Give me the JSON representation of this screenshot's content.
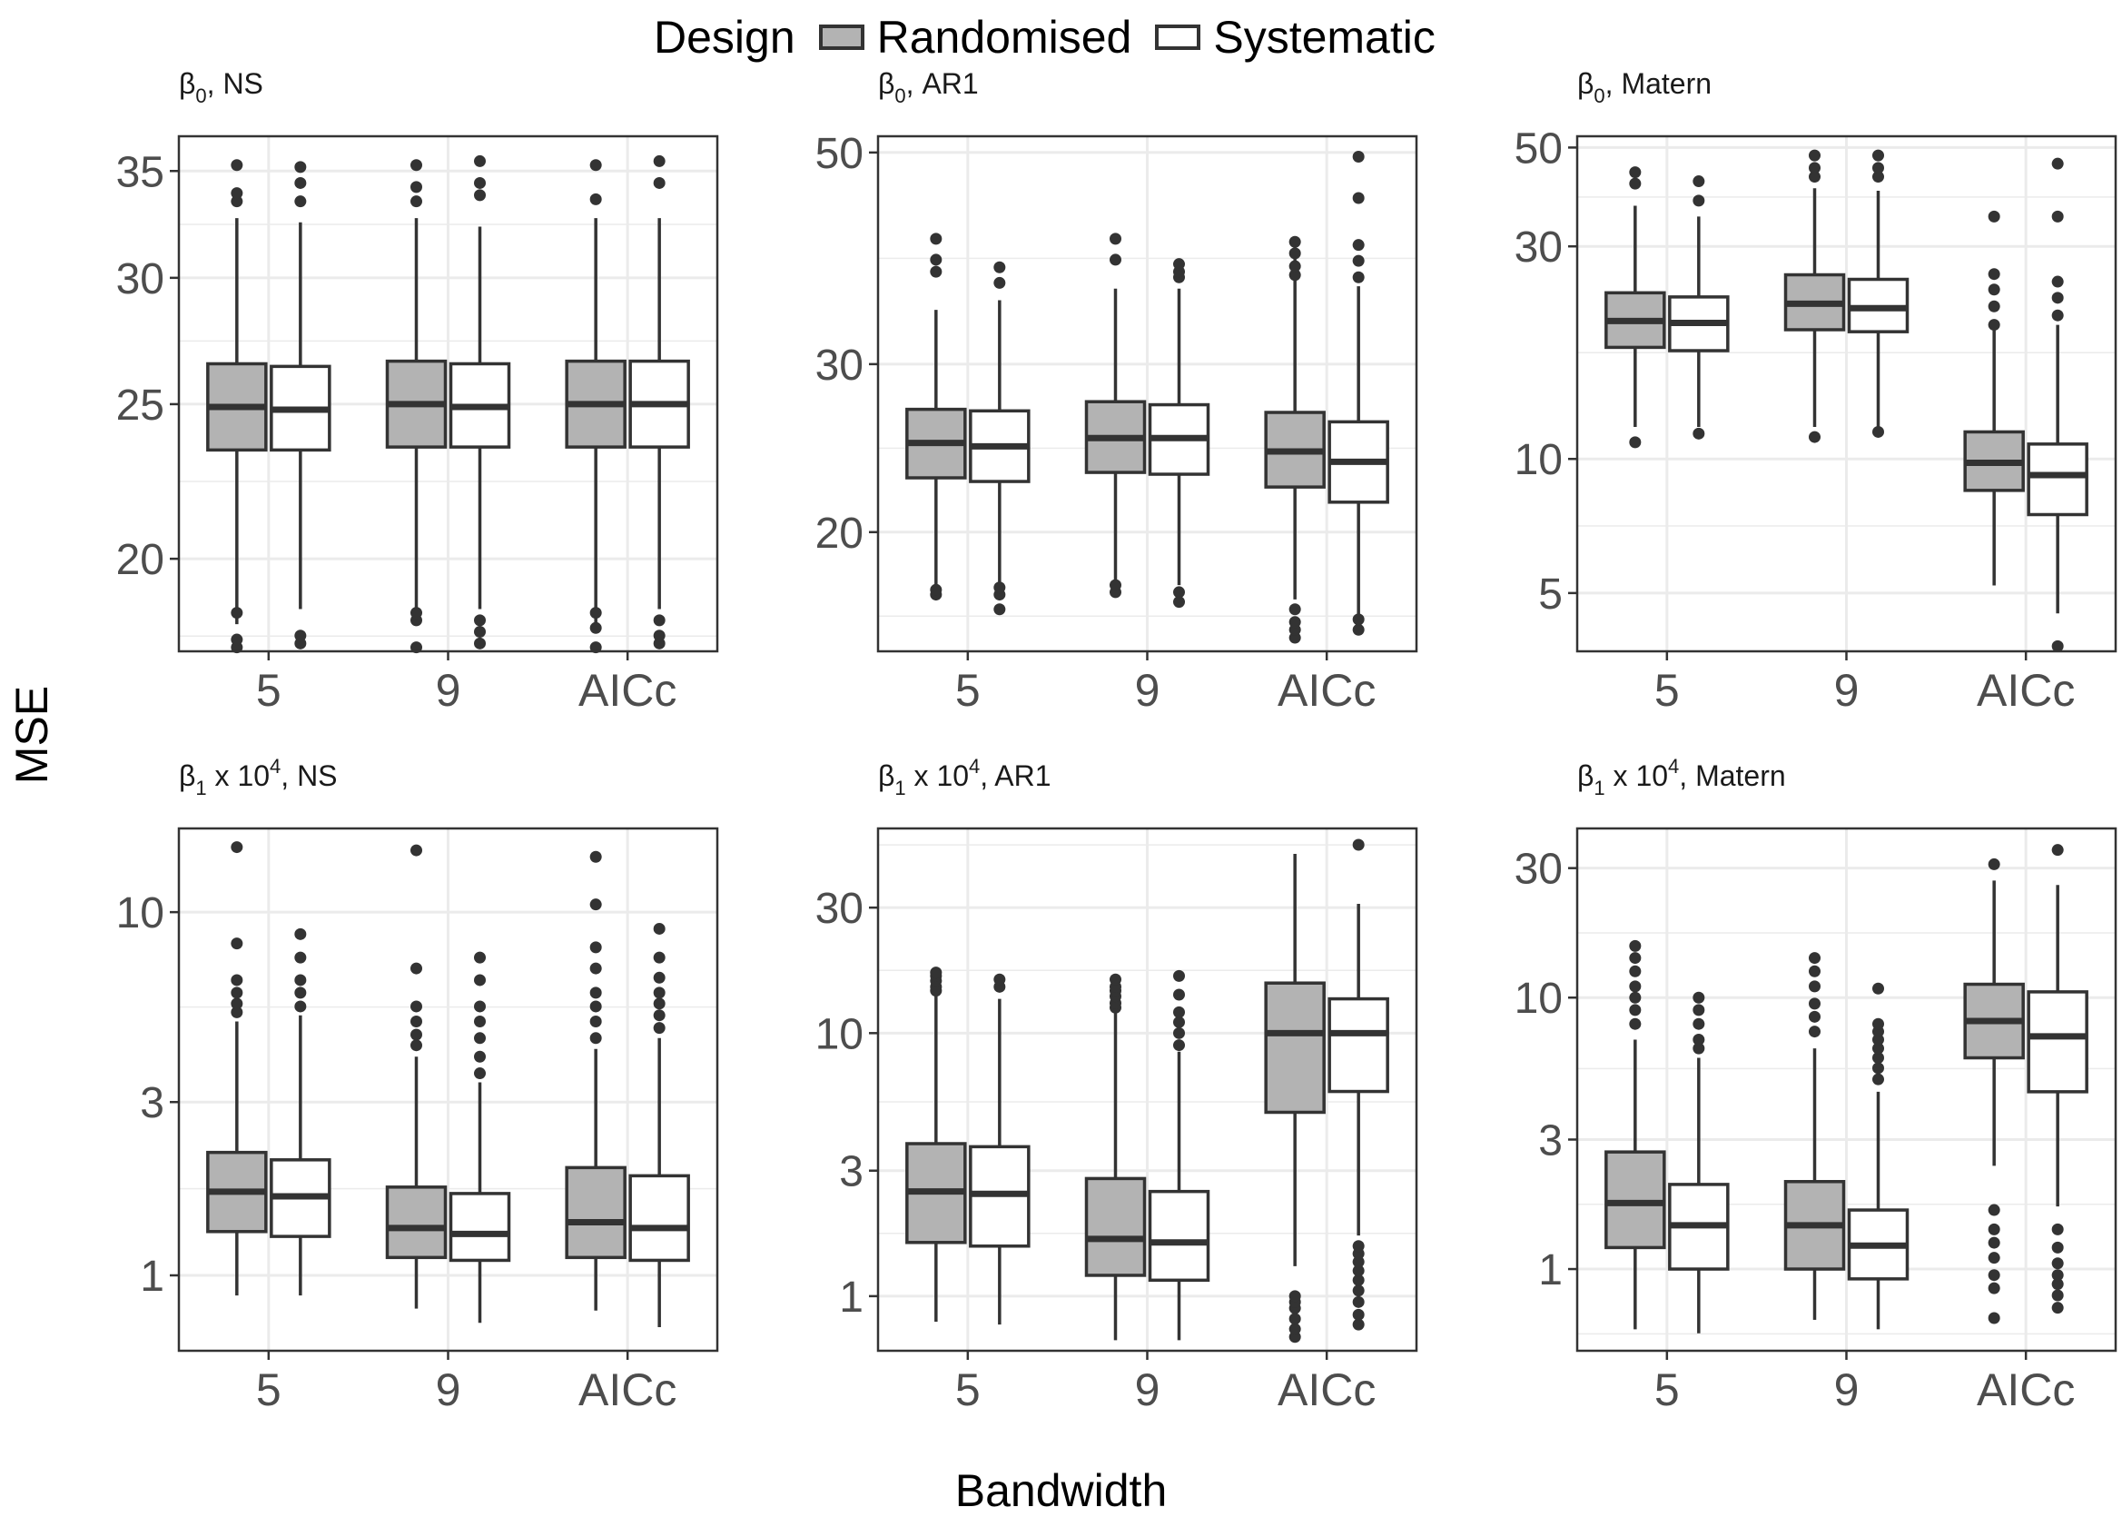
{
  "legend": {
    "title": "Design",
    "entries": [
      {
        "label": "Randomised",
        "fill": "#b3b3b3"
      },
      {
        "label": "Systematic",
        "fill": "#ffffff"
      }
    ]
  },
  "axis_titles": {
    "x": "Bandwidth",
    "y": "MSE"
  },
  "colors": {
    "box_stroke": "#333333",
    "outlier": "#333333",
    "panel_border": "#333333",
    "grid": "#ebebeb",
    "tick_text": "#4d4d4d"
  },
  "chart_data": [
    {
      "type": "boxplot",
      "title": {
        "sym": "β",
        "sub": "0",
        "rest": ", NS"
      },
      "xlabel": "Bandwidth",
      "ylabel": "MSE",
      "y_scale": "log",
      "ylim": [
        17.5,
        36.8
      ],
      "y_ticks": [
        20,
        25,
        30,
        35
      ],
      "categories": [
        "5",
        "9",
        "AICc"
      ],
      "series": [
        {
          "name": "Randomised",
          "boxes": [
            {
              "whisker_low": 18.2,
              "q1": 23.4,
              "median": 24.9,
              "q3": 26.5,
              "whisker_high": 32.7,
              "outliers": [
                17.6,
                17.8,
                18.5,
                33.5,
                33.9,
                35.3
              ]
            },
            {
              "whisker_low": 18.2,
              "q1": 23.5,
              "median": 25.0,
              "q3": 26.6,
              "whisker_high": 32.7,
              "outliers": [
                17.6,
                18.3,
                18.5,
                33.5,
                34.2,
                35.3
              ]
            },
            {
              "whisker_low": 18.2,
              "q1": 23.5,
              "median": 25.0,
              "q3": 26.6,
              "whisker_high": 32.7,
              "outliers": [
                17.6,
                18.1,
                18.5,
                33.6,
                35.3
              ]
            }
          ]
        },
        {
          "name": "Systematic",
          "boxes": [
            {
              "whisker_low": 18.6,
              "q1": 23.4,
              "median": 24.8,
              "q3": 26.4,
              "whisker_high": 32.5,
              "outliers": [
                17.7,
                17.9,
                33.5,
                34.4,
                35.2
              ]
            },
            {
              "whisker_low": 18.6,
              "q1": 23.5,
              "median": 24.9,
              "q3": 26.5,
              "whisker_high": 32.3,
              "outliers": [
                17.7,
                18.0,
                18.3,
                33.8,
                34.4,
                35.5
              ]
            },
            {
              "whisker_low": 18.6,
              "q1": 23.5,
              "median": 25.0,
              "q3": 26.6,
              "whisker_high": 32.7,
              "outliers": [
                17.7,
                17.9,
                18.3,
                34.4,
                35.5
              ]
            }
          ]
        }
      ]
    },
    {
      "type": "boxplot",
      "title": {
        "sym": "β",
        "sub": "0",
        "rest": ", AR1"
      },
      "xlabel": "Bandwidth",
      "ylabel": "MSE",
      "y_scale": "log",
      "ylim": [
        15.0,
        52.0
      ],
      "y_ticks": [
        20,
        30,
        50
      ],
      "categories": [
        "5",
        "9",
        "AICc"
      ],
      "series": [
        {
          "name": "Randomised",
          "boxes": [
            {
              "whisker_low": 17.5,
              "q1": 22.8,
              "median": 24.8,
              "q3": 26.9,
              "whisker_high": 34.2,
              "outliers": [
                17.2,
                17.4,
                37.5,
                38.6,
                40.6
              ]
            },
            {
              "whisker_low": 17.6,
              "q1": 23.1,
              "median": 25.1,
              "q3": 27.4,
              "whisker_high": 36.0,
              "outliers": [
                17.3,
                17.6,
                38.6,
                40.6
              ]
            },
            {
              "whisker_low": 17.0,
              "q1": 22.3,
              "median": 24.3,
              "q3": 26.7,
              "whisker_high": 39.5,
              "outliers": [
                15.5,
                15.8,
                16.1,
                16.6,
                37.2,
                38.0,
                39.2,
                40.3
              ]
            }
          ]
        },
        {
          "name": "Systematic",
          "boxes": [
            {
              "whisker_low": 17.6,
              "q1": 22.6,
              "median": 24.6,
              "q3": 26.8,
              "whisker_high": 35.0,
              "outliers": [
                16.6,
                17.2,
                17.5,
                36.5,
                37.9
              ]
            },
            {
              "whisker_low": 17.6,
              "q1": 23.0,
              "median": 25.1,
              "q3": 27.2,
              "whisker_high": 36.0,
              "outliers": [
                16.9,
                17.3,
                37.0,
                37.5,
                38.2
              ]
            },
            {
              "whisker_low": 16.4,
              "q1": 21.5,
              "median": 23.7,
              "q3": 26.1,
              "whisker_high": 36.2,
              "outliers": [
                15.8,
                16.2,
                37.0,
                38.5,
                40.0,
                44.8,
                49.5
              ]
            }
          ]
        }
      ]
    },
    {
      "type": "boxplot",
      "title": {
        "sym": "β",
        "sub": "0",
        "rest": ", Matern"
      },
      "xlabel": "Bandwidth",
      "ylabel": "MSE",
      "y_scale": "log",
      "ylim": [
        3.7,
        53.0
      ],
      "y_ticks": [
        5,
        10,
        30,
        50
      ],
      "categories": [
        "5",
        "9",
        "AICc"
      ],
      "series": [
        {
          "name": "Randomised",
          "boxes": [
            {
              "whisker_low": 11.8,
              "q1": 17.8,
              "median": 20.4,
              "q3": 23.6,
              "whisker_high": 37.0,
              "outliers": [
                10.9,
                41.5,
                44.0
              ]
            },
            {
              "whisker_low": 11.8,
              "q1": 19.5,
              "median": 22.3,
              "q3": 25.9,
              "whisker_high": 40.5,
              "outliers": [
                11.2,
                43.0,
                45.0,
                48.0
              ]
            },
            {
              "whisker_low": 5.2,
              "q1": 8.5,
              "median": 9.8,
              "q3": 11.5,
              "whisker_high": 19.5,
              "outliers": [
                20.0,
                22.0,
                24.0,
                26.0,
                35.0
              ]
            }
          ]
        },
        {
          "name": "Systematic",
          "boxes": [
            {
              "whisker_low": 11.8,
              "q1": 17.5,
              "median": 20.2,
              "q3": 23.1,
              "whisker_high": 35.0,
              "outliers": [
                11.4,
                38.0,
                42.0
              ]
            },
            {
              "whisker_low": 11.8,
              "q1": 19.3,
              "median": 21.8,
              "q3": 25.3,
              "whisker_high": 40.0,
              "outliers": [
                11.5,
                43.0,
                45.0,
                48.0
              ]
            },
            {
              "whisker_low": 4.5,
              "q1": 7.5,
              "median": 9.2,
              "q3": 10.8,
              "whisker_high": 20.0,
              "outliers": [
                3.8,
                21.0,
                23.0,
                25.0,
                35.0,
                46.0
              ]
            }
          ]
        }
      ]
    },
    {
      "type": "boxplot",
      "title": {
        "sym": "β",
        "sub": "1",
        "rest": " x 10",
        "sup": "4",
        "rest2": ",  NS"
      },
      "xlabel": "Bandwidth",
      "ylabel": "MSE",
      "y_scale": "log",
      "ylim": [
        0.62,
        17.0
      ],
      "y_ticks": [
        1,
        3,
        10
      ],
      "categories": [
        "5",
        "9",
        "AICc"
      ],
      "series": [
        {
          "name": "Randomised",
          "boxes": [
            {
              "whisker_low": 0.88,
              "q1": 1.32,
              "median": 1.7,
              "q3": 2.18,
              "whisker_high": 5.0,
              "outliers": [
                5.3,
                5.6,
                6.0,
                6.5,
                8.2,
                15.1
              ]
            },
            {
              "whisker_low": 0.81,
              "q1": 1.12,
              "median": 1.35,
              "q3": 1.75,
              "whisker_high": 4.0,
              "outliers": [
                4.3,
                4.6,
                5.0,
                5.5,
                7.0,
                14.8
              ]
            },
            {
              "whisker_low": 0.8,
              "q1": 1.12,
              "median": 1.4,
              "q3": 1.98,
              "whisker_high": 4.2,
              "outliers": [
                4.5,
                5.0,
                5.5,
                6.0,
                7.0,
                8.0,
                10.5,
                14.2
              ]
            }
          ]
        },
        {
          "name": "Systematic",
          "boxes": [
            {
              "whisker_low": 0.88,
              "q1": 1.28,
              "median": 1.65,
              "q3": 2.08,
              "whisker_high": 5.2,
              "outliers": [
                5.5,
                6.0,
                6.5,
                7.5,
                8.7
              ]
            },
            {
              "whisker_low": 0.74,
              "q1": 1.1,
              "median": 1.3,
              "q3": 1.68,
              "whisker_high": 3.4,
              "outliers": [
                3.6,
                4.0,
                4.5,
                5.0,
                5.5,
                6.5,
                7.5
              ]
            },
            {
              "whisker_low": 0.72,
              "q1": 1.1,
              "median": 1.35,
              "q3": 1.88,
              "whisker_high": 4.5,
              "outliers": [
                4.8,
                5.2,
                5.6,
                6.0,
                6.6,
                7.5,
                9.0
              ]
            }
          ]
        }
      ]
    },
    {
      "type": "boxplot",
      "title": {
        "sym": "β",
        "sub": "1",
        "rest": " x 10",
        "sup": "4",
        "rest2": ",  AR1"
      },
      "xlabel": "Bandwidth",
      "ylabel": "MSE",
      "y_scale": "log",
      "ylim": [
        0.62,
        60.0
      ],
      "y_ticks": [
        1,
        3,
        10,
        30
      ],
      "categories": [
        "5",
        "9",
        "AICc"
      ],
      "series": [
        {
          "name": "Randomised",
          "boxes": [
            {
              "whisker_low": 0.8,
              "q1": 1.6,
              "median": 2.5,
              "q3": 3.8,
              "whisker_high": 14.0,
              "outliers": [
                14.5,
                15.0,
                15.8,
                16.5,
                17.0
              ]
            },
            {
              "whisker_low": 0.68,
              "q1": 1.2,
              "median": 1.65,
              "q3": 2.8,
              "whisker_high": 12.0,
              "outliers": [
                12.5,
                13.0,
                13.8,
                14.5,
                15.0,
                16.0
              ]
            },
            {
              "whisker_low": 1.3,
              "q1": 5.0,
              "median": 10.0,
              "q3": 15.5,
              "whisker_high": 48.0,
              "outliers": [
                0.7,
                0.75,
                0.82,
                0.9,
                0.95,
                1.0
              ]
            }
          ]
        },
        {
          "name": "Systematic",
          "boxes": [
            {
              "whisker_low": 0.78,
              "q1": 1.55,
              "median": 2.45,
              "q3": 3.7,
              "whisker_high": 13.5,
              "outliers": [
                15.0,
                16.0
              ]
            },
            {
              "whisker_low": 0.68,
              "q1": 1.15,
              "median": 1.6,
              "q3": 2.5,
              "whisker_high": 8.5,
              "outliers": [
                9.0,
                10.0,
                11.0,
                12.0,
                14.0,
                16.5
              ]
            },
            {
              "whisker_low": 1.7,
              "q1": 6.0,
              "median": 10.0,
              "q3": 13.5,
              "whisker_high": 31.0,
              "outliers": [
                0.78,
                0.85,
                0.95,
                1.05,
                1.15,
                1.25,
                1.35,
                1.45,
                1.55,
                52.0
              ]
            }
          ]
        }
      ]
    },
    {
      "type": "boxplot",
      "title": {
        "sym": "β",
        "sub": "1",
        "rest": " x 10",
        "sup": "4",
        "rest2": ",  Matern"
      },
      "xlabel": "Bandwidth",
      "ylabel": "MSE",
      "y_scale": "log",
      "ylim": [
        0.5,
        42.0
      ],
      "y_ticks": [
        1,
        3,
        10,
        30
      ],
      "categories": [
        "5",
        "9",
        "AICc"
      ],
      "series": [
        {
          "name": "Randomised",
          "boxes": [
            {
              "whisker_low": 0.6,
              "q1": 1.2,
              "median": 1.75,
              "q3": 2.7,
              "whisker_high": 7.0,
              "outliers": [
                8.0,
                9.0,
                10.0,
                11.0,
                12.5,
                14.0,
                15.5
              ]
            },
            {
              "whisker_low": 0.65,
              "q1": 1.0,
              "median": 1.45,
              "q3": 2.1,
              "whisker_high": 6.5,
              "outliers": [
                7.5,
                8.5,
                9.5,
                11.0,
                12.5,
                14.0
              ]
            },
            {
              "whisker_low": 2.4,
              "q1": 6.0,
              "median": 8.2,
              "q3": 11.2,
              "whisker_high": 27.0,
              "outliers": [
                0.66,
                0.85,
                0.95,
                1.1,
                1.25,
                1.4,
                1.65,
                31.0
              ]
            }
          ]
        },
        {
          "name": "Systematic",
          "boxes": [
            {
              "whisker_low": 0.58,
              "q1": 1.0,
              "median": 1.45,
              "q3": 2.05,
              "whisker_high": 6.0,
              "outliers": [
                6.5,
                7.0,
                8.0,
                9.0,
                10.0
              ]
            },
            {
              "whisker_low": 0.6,
              "q1": 0.92,
              "median": 1.22,
              "q3": 1.65,
              "whisker_high": 4.5,
              "outliers": [
                5.0,
                5.5,
                6.0,
                6.5,
                7.0,
                7.5,
                8.0,
                10.8
              ]
            },
            {
              "whisker_low": 1.7,
              "q1": 4.5,
              "median": 7.2,
              "q3": 10.5,
              "whisker_high": 26.0,
              "outliers": [
                0.72,
                0.8,
                0.88,
                0.95,
                1.05,
                1.2,
                1.4,
                35.0
              ]
            }
          ]
        }
      ]
    }
  ]
}
